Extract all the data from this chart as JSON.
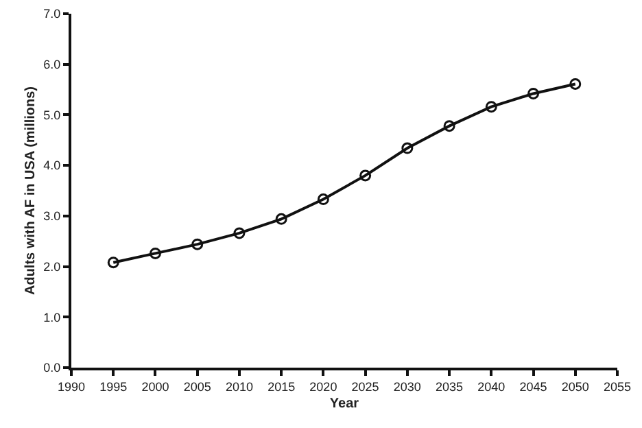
{
  "chart_data": {
    "type": "line",
    "xlabel": "Year",
    "ylabel": "Adults with AF in USA (millions)",
    "x": [
      1995,
      2000,
      2005,
      2010,
      2015,
      2020,
      2025,
      2030,
      2035,
      2040,
      2045,
      2050
    ],
    "series": [
      {
        "color": "#111111",
        "values": [
          2.08,
          2.26,
          2.44,
          2.66,
          2.94,
          3.33,
          3.8,
          4.34,
          4.78,
          5.16,
          5.42,
          5.61
        ]
      }
    ],
    "xlim": [
      1990,
      2055
    ],
    "xticks": [
      1990,
      1995,
      2000,
      2005,
      2010,
      2015,
      2020,
      2025,
      2030,
      2035,
      2040,
      2045,
      2050,
      2055
    ],
    "ylim": [
      0,
      7
    ],
    "yticks": [
      {
        "value": 0,
        "label": "0.0"
      },
      {
        "value": 1,
        "label": "1.0"
      },
      {
        "value": 2,
        "label": "2.0"
      },
      {
        "value": 3,
        "label": "3.0"
      },
      {
        "value": 4,
        "label": "4.0"
      },
      {
        "value": 5,
        "label": "5.0"
      },
      {
        "value": 6,
        "label": "6.0"
      },
      {
        "value": 7,
        "label": "7.0"
      }
    ],
    "grid": false,
    "marker": "circle",
    "line_style": "solid"
  }
}
